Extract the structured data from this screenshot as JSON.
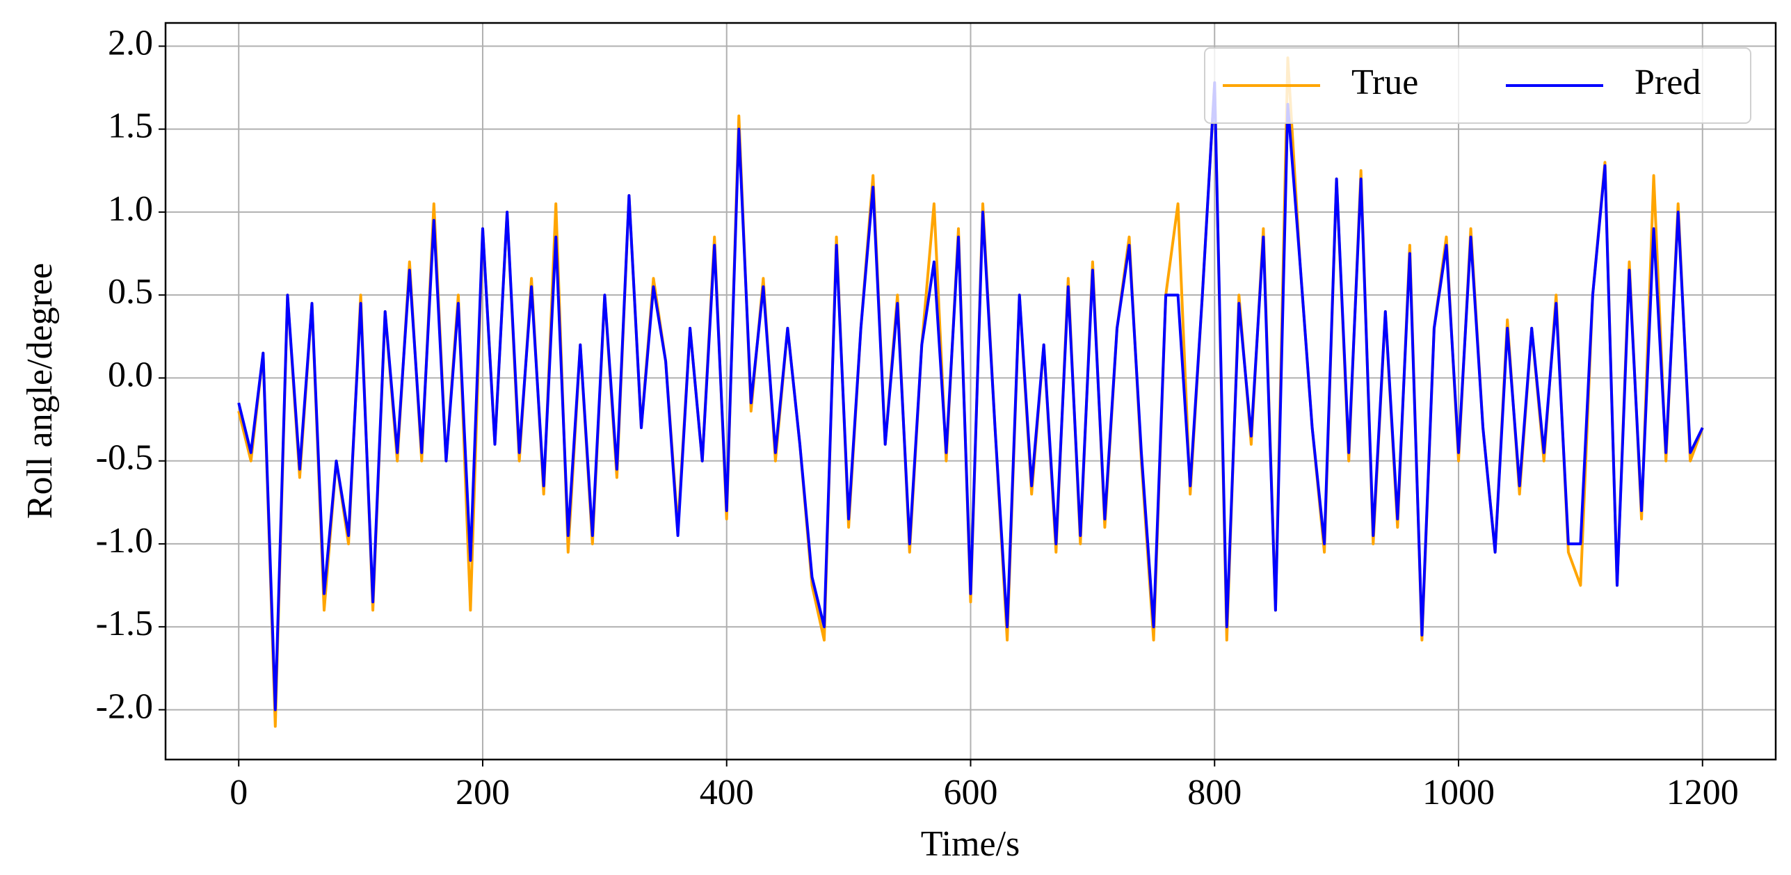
{
  "chart_data": {
    "type": "line",
    "xlabel": "Time/s",
    "ylabel": "Roll angle/degree",
    "x": [
      0,
      10,
      20,
      30,
      40,
      50,
      60,
      70,
      80,
      90,
      100,
      110,
      120,
      130,
      140,
      150,
      160,
      170,
      180,
      190,
      200,
      210,
      220,
      230,
      240,
      250,
      260,
      270,
      280,
      290,
      300,
      310,
      320,
      330,
      340,
      350,
      360,
      370,
      380,
      390,
      400,
      410,
      420,
      430,
      440,
      450,
      460,
      470,
      480,
      490,
      500,
      510,
      520,
      530,
      540,
      550,
      560,
      570,
      580,
      590,
      600,
      610,
      620,
      630,
      640,
      650,
      660,
      670,
      680,
      690,
      700,
      710,
      720,
      730,
      740,
      750,
      760,
      770,
      780,
      790,
      800,
      810,
      820,
      830,
      840,
      850,
      860,
      870,
      880,
      890,
      900,
      910,
      920,
      930,
      940,
      950,
      960,
      970,
      980,
      990,
      1000,
      1010,
      1020,
      1030,
      1040,
      1050,
      1060,
      1070,
      1080,
      1090,
      1100,
      1110,
      1120,
      1130,
      1140,
      1150,
      1160,
      1170,
      1180,
      1190,
      1200
    ],
    "series": [
      {
        "name": "True",
        "color": "#ffa500",
        "values": [
          -0.2,
          -0.5,
          0.15,
          -2.1,
          0.5,
          -0.6,
          0.45,
          -1.4,
          -0.5,
          -1.0,
          0.5,
          -1.4,
          0.4,
          -0.5,
          0.7,
          -0.5,
          1.05,
          -0.5,
          0.5,
          -1.4,
          0.9,
          -0.4,
          1.0,
          -0.5,
          0.6,
          -0.7,
          1.05,
          -1.05,
          0.2,
          -1.0,
          0.5,
          -0.6,
          1.1,
          -0.3,
          0.6,
          0.1,
          -0.9,
          0.3,
          -0.5,
          0.85,
          -0.85,
          1.58,
          -0.2,
          0.6,
          -0.5,
          0.3,
          -0.4,
          -1.25,
          -1.58,
          0.85,
          -0.9,
          0.3,
          1.22,
          -0.4,
          0.5,
          -1.05,
          0.2,
          1.05,
          -0.5,
          0.9,
          -1.35,
          1.05,
          -0.3,
          -1.58,
          0.5,
          -0.7,
          0.2,
          -1.05,
          0.6,
          -1.0,
          0.7,
          -0.9,
          0.3,
          0.85,
          -0.5,
          -1.58,
          0.5,
          1.05,
          -0.7,
          0.5,
          1.78,
          -1.58,
          0.5,
          -0.4,
          0.9,
          -1.4,
          1.93,
          0.7,
          -0.3,
          -1.05,
          1.2,
          -0.5,
          1.25,
          -1.0,
          0.4,
          -0.9,
          0.8,
          -1.58,
          0.3,
          0.85,
          -0.5,
          0.9,
          -0.3,
          -1.05,
          0.35,
          -0.7,
          0.3,
          -0.5,
          0.5,
          -1.05,
          -1.25,
          0.5,
          1.3,
          -1.25,
          0.7,
          -0.85,
          1.22,
          -0.5,
          1.05,
          -0.5,
          -0.3
        ]
      },
      {
        "name": "Pred",
        "color": "#0000ff",
        "values": [
          -0.15,
          -0.45,
          0.15,
          -2.0,
          0.5,
          -0.55,
          0.45,
          -1.3,
          -0.5,
          -0.95,
          0.45,
          -1.35,
          0.4,
          -0.45,
          0.65,
          -0.45,
          0.95,
          -0.5,
          0.45,
          -1.1,
          0.9,
          -0.4,
          1.0,
          -0.45,
          0.55,
          -0.65,
          0.85,
          -0.95,
          0.2,
          -0.95,
          0.5,
          -0.55,
          1.1,
          -0.3,
          0.55,
          0.1,
          -0.95,
          0.3,
          -0.5,
          0.8,
          -0.8,
          1.5,
          -0.15,
          0.55,
          -0.45,
          0.3,
          -0.4,
          -1.2,
          -1.5,
          0.8,
          -0.85,
          0.3,
          1.15,
          -0.4,
          0.45,
          -1.0,
          0.2,
          0.7,
          -0.45,
          0.85,
          -1.3,
          1.0,
          -0.3,
          -1.5,
          0.5,
          -0.65,
          0.2,
          -1.0,
          0.55,
          -0.95,
          0.65,
          -0.85,
          0.3,
          0.8,
          -0.45,
          -1.5,
          0.5,
          0.5,
          -0.65,
          0.5,
          1.78,
          -1.5,
          0.45,
          -0.35,
          0.85,
          -1.4,
          1.65,
          0.7,
          -0.3,
          -1.0,
          1.2,
          -0.45,
          1.2,
          -0.95,
          0.4,
          -0.85,
          0.75,
          -1.55,
          0.3,
          0.8,
          -0.45,
          0.85,
          -0.3,
          -1.05,
          0.3,
          -0.65,
          0.3,
          -0.45,
          0.45,
          -1.0,
          -1.0,
          0.5,
          1.28,
          -1.25,
          0.65,
          -0.8,
          0.9,
          -0.45,
          1.0,
          -0.45,
          -0.3
        ]
      }
    ],
    "xlim": [
      -60,
      1260
    ],
    "ylim": [
      -2.3,
      2.14
    ],
    "xticks": [
      0,
      200,
      400,
      600,
      800,
      1000,
      1200
    ],
    "yticks": [
      {
        "value": -2,
        "label": "-2.0"
      },
      -1.5,
      {
        "value": -1,
        "label": "-1.0"
      },
      -0.5,
      {
        "value": 0,
        "label": "0.0"
      },
      0.5,
      {
        "value": 1,
        "label": "1.0"
      },
      1.5,
      {
        "value": 2,
        "label": "2.0"
      }
    ],
    "grid": true,
    "legend": "upper right"
  }
}
